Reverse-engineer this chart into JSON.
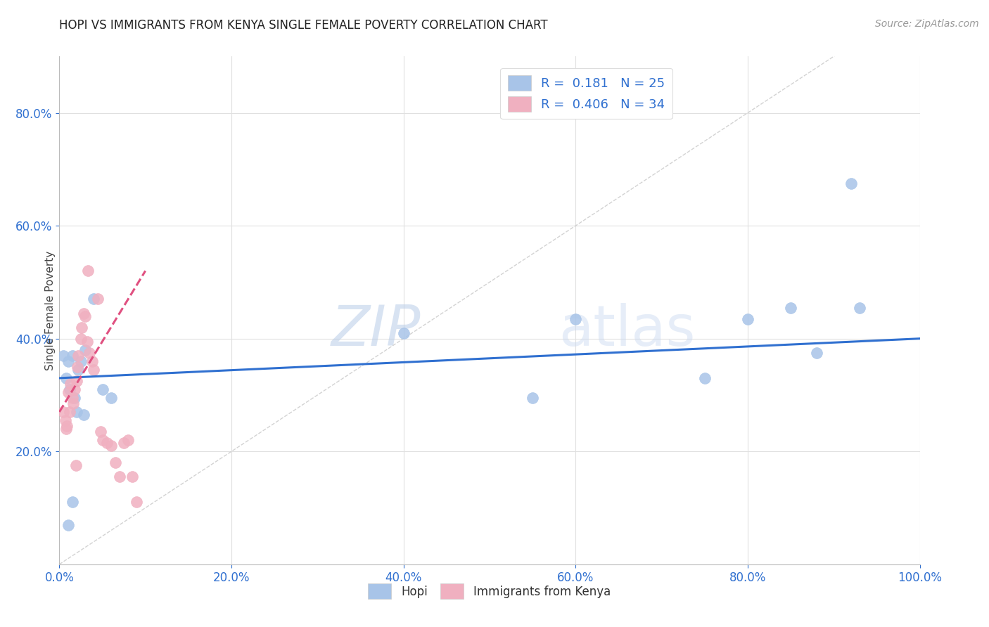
{
  "title": "HOPI VS IMMIGRANTS FROM KENYA SINGLE FEMALE POVERTY CORRELATION CHART",
  "source": "Source: ZipAtlas.com",
  "ylabel_label": "Single Female Poverty",
  "legend_label1": "Hopi",
  "legend_label2": "Immigrants from Kenya",
  "R1": 0.181,
  "N1": 25,
  "R2": 0.406,
  "N2": 34,
  "color1": "#a8c4e8",
  "color2": "#f0b0c0",
  "trendline1_color": "#3070d0",
  "trendline2_color": "#e05080",
  "diagonal_color": "#c8c8c8",
  "watermark_zip": "ZIP",
  "watermark_atlas": "atlas",
  "xlim": [
    0.0,
    1.0
  ],
  "ylim": [
    0.0,
    0.9
  ],
  "xticks": [
    0.0,
    0.2,
    0.4,
    0.6,
    0.8,
    1.0
  ],
  "yticks": [
    0.2,
    0.4,
    0.6,
    0.8
  ],
  "hopi_x": [
    0.005,
    0.008,
    0.01,
    0.012,
    0.015,
    0.018,
    0.02,
    0.022,
    0.025,
    0.028,
    0.03,
    0.04,
    0.05,
    0.06,
    0.55,
    0.6,
    0.75,
    0.8,
    0.85,
    0.88,
    0.92,
    0.93,
    0.4,
    0.01,
    0.015
  ],
  "hopi_y": [
    0.37,
    0.33,
    0.36,
    0.31,
    0.37,
    0.295,
    0.27,
    0.345,
    0.36,
    0.265,
    0.38,
    0.47,
    0.31,
    0.295,
    0.295,
    0.435,
    0.33,
    0.435,
    0.455,
    0.375,
    0.675,
    0.455,
    0.41,
    0.07,
    0.11
  ],
  "kenya_x": [
    0.005,
    0.007,
    0.008,
    0.009,
    0.01,
    0.012,
    0.013,
    0.015,
    0.016,
    0.018,
    0.019,
    0.02,
    0.021,
    0.022,
    0.025,
    0.026,
    0.028,
    0.03,
    0.032,
    0.033,
    0.035,
    0.038,
    0.04,
    0.045,
    0.048,
    0.05,
    0.055,
    0.06,
    0.065,
    0.07,
    0.075,
    0.08,
    0.085,
    0.09
  ],
  "kenya_y": [
    0.27,
    0.255,
    0.24,
    0.245,
    0.305,
    0.27,
    0.32,
    0.295,
    0.285,
    0.31,
    0.175,
    0.325,
    0.35,
    0.37,
    0.4,
    0.42,
    0.445,
    0.44,
    0.395,
    0.52,
    0.375,
    0.36,
    0.345,
    0.47,
    0.235,
    0.22,
    0.215,
    0.21,
    0.18,
    0.155,
    0.215,
    0.22,
    0.155,
    0.11
  ],
  "hopi_trendline_x": [
    0.0,
    1.0
  ],
  "hopi_trendline_y": [
    0.33,
    0.4
  ],
  "kenya_trendline_x": [
    0.0,
    0.1
  ],
  "kenya_trendline_y": [
    0.27,
    0.52
  ]
}
